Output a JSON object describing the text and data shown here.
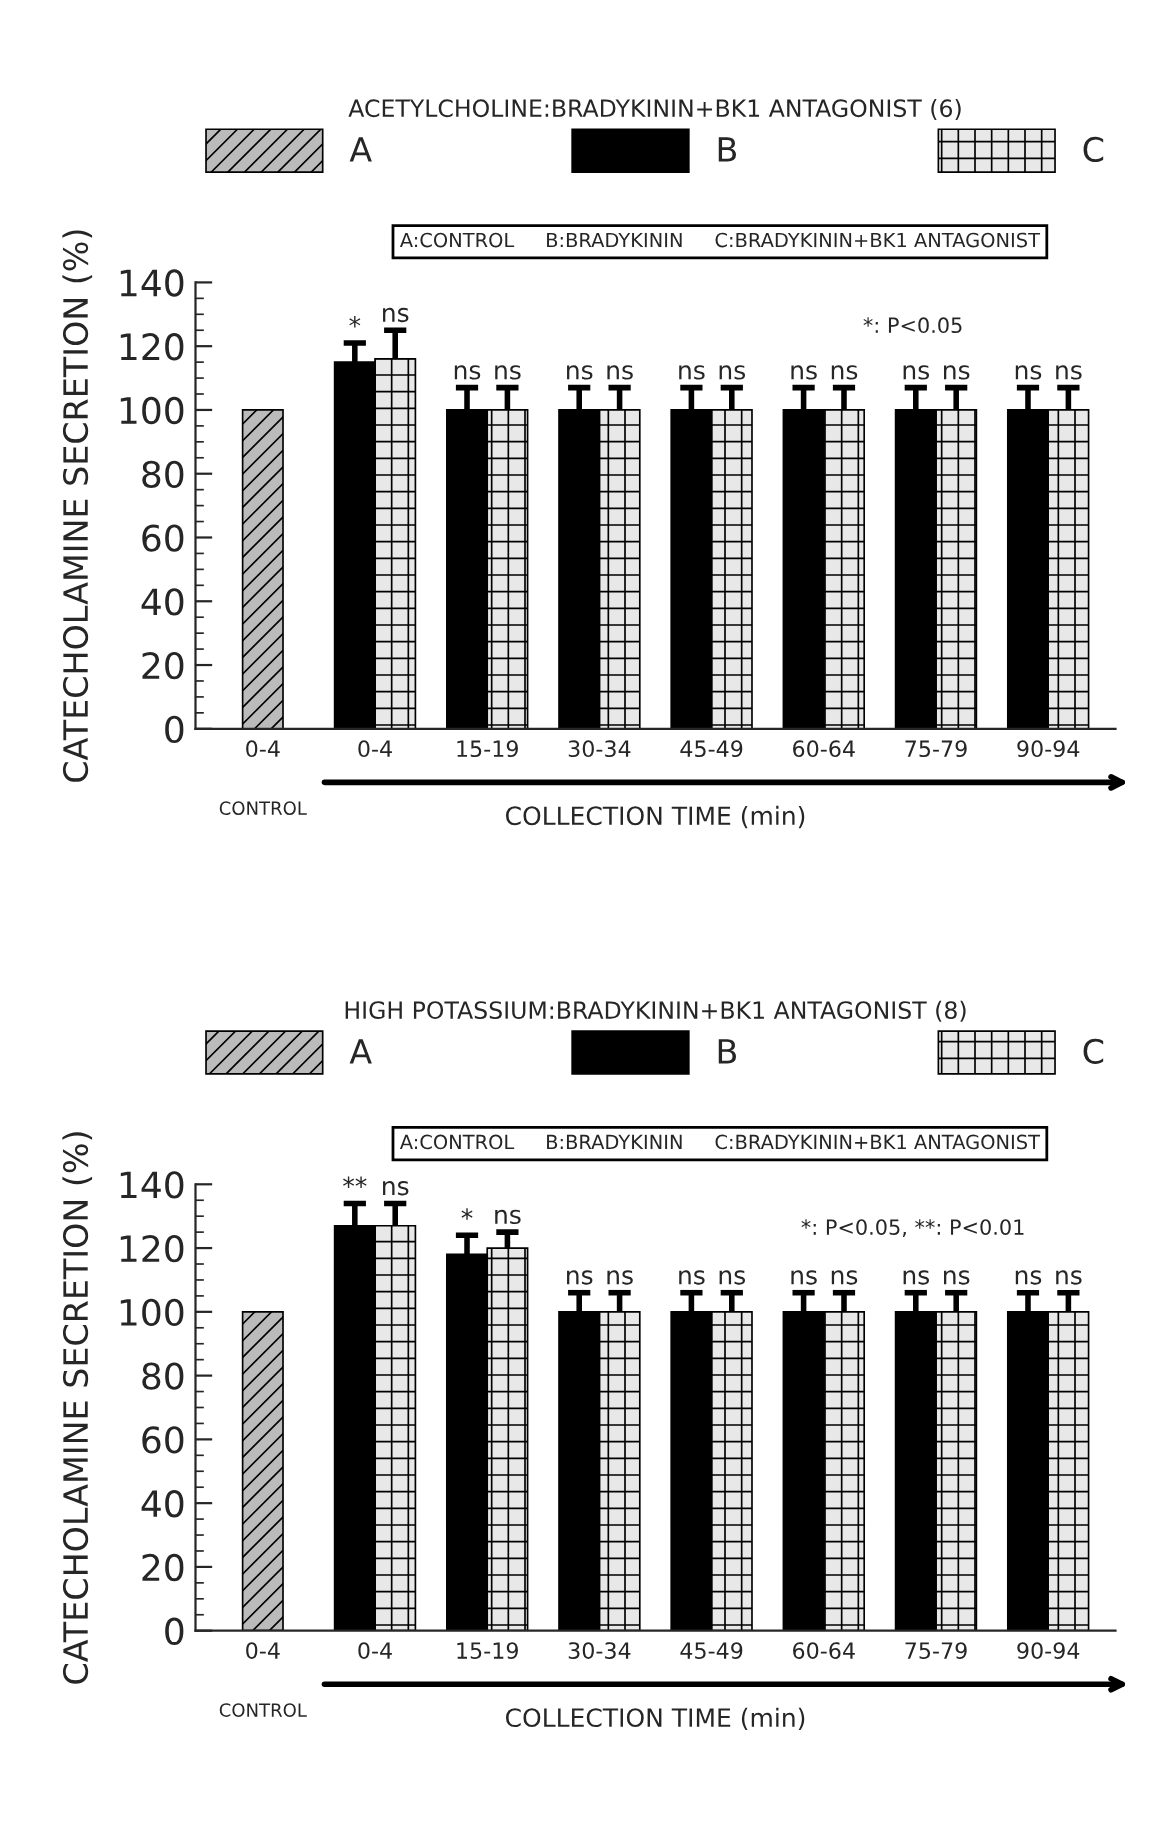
{
  "chart_data": [
    {
      "type": "bar",
      "title": "ACETYLCHOLINE:BRADYKININ+BK1 ANTAGONIST (6)",
      "xlabel": "COLLECTION TIME (min)",
      "ylabel": "CATECHOLAMINE SECRETION (%)",
      "categories": [
        "0-4",
        "0-4",
        "15-19",
        "30-34",
        "45-49",
        "60-64",
        "75-79",
        "90-94"
      ],
      "series": [
        {
          "name": "A",
          "color": "#bbbbbb",
          "values": [
            100,
            null,
            null,
            null,
            null,
            null,
            null,
            null
          ]
        },
        {
          "name": "B",
          "color": "#000000",
          "values": [
            null,
            115,
            100,
            100,
            100,
            100,
            100,
            100
          ],
          "errors": [
            null,
            6,
            7,
            7,
            7,
            7,
            7,
            7
          ],
          "value_labels": [
            null,
            "*",
            "ns",
            "ns",
            "ns",
            "ns",
            "ns",
            "ns"
          ]
        },
        {
          "name": "C",
          "color": "#e8e8e8",
          "values": [
            null,
            116,
            100,
            100,
            100,
            100,
            100,
            100
          ],
          "errors": [
            null,
            9,
            7,
            7,
            7,
            7,
            7,
            7
          ],
          "value_labels": [
            null,
            "ns",
            "ns",
            "ns",
            "ns",
            "ns",
            "ns",
            "ns"
          ]
        }
      ],
      "ylim": [
        0,
        140
      ],
      "yticks": [
        0,
        20,
        40,
        60,
        80,
        100,
        120,
        140
      ],
      "legend": "top",
      "annotations": [
        "A:CONTROL     B:BRADYKININ     C:BRADYKININ+BK1 ANTAGONIST",
        "CONTROL",
        "*: P<0.05"
      ]
    },
    {
      "type": "bar",
      "title": "HIGH POTASSIUM:BRADYKININ+BK1 ANTAGONIST (8)",
      "xlabel": "COLLECTION TIME (min)",
      "ylabel": "CATECHOLAMINE SECRETION (%)",
      "categories": [
        "0-4",
        "0-4",
        "15-19",
        "30-34",
        "45-49",
        "60-64",
        "75-79",
        "90-94"
      ],
      "series": [
        {
          "name": "A",
          "color": "#bbbbbb",
          "values": [
            100,
            null,
            null,
            null,
            null,
            null,
            null,
            null
          ]
        },
        {
          "name": "B",
          "color": "#000000",
          "values": [
            null,
            127,
            118,
            100,
            100,
            100,
            100,
            100
          ],
          "errors": [
            null,
            7,
            6,
            6,
            6,
            6,
            6,
            6
          ],
          "value_labels": [
            null,
            "**",
            "*",
            "ns",
            "ns",
            "ns",
            "ns",
            "ns"
          ]
        },
        {
          "name": "C",
          "color": "#e8e8e8",
          "values": [
            null,
            127,
            120,
            100,
            100,
            100,
            100,
            100
          ],
          "errors": [
            null,
            7,
            5,
            6,
            6,
            6,
            6,
            6
          ],
          "value_labels": [
            null,
            "ns",
            "ns",
            "ns",
            "ns",
            "ns",
            "ns",
            "ns"
          ]
        }
      ],
      "ylim": [
        0,
        140
      ],
      "yticks": [
        0,
        20,
        40,
        60,
        80,
        100,
        120,
        140
      ],
      "legend": "top",
      "annotations": [
        "A:CONTROL     B:BRADYKININ     C:BRADYKININ+BK1 ANTAGONIST",
        "CONTROL",
        "*: P<0.05, **: P<0.01"
      ]
    }
  ]
}
